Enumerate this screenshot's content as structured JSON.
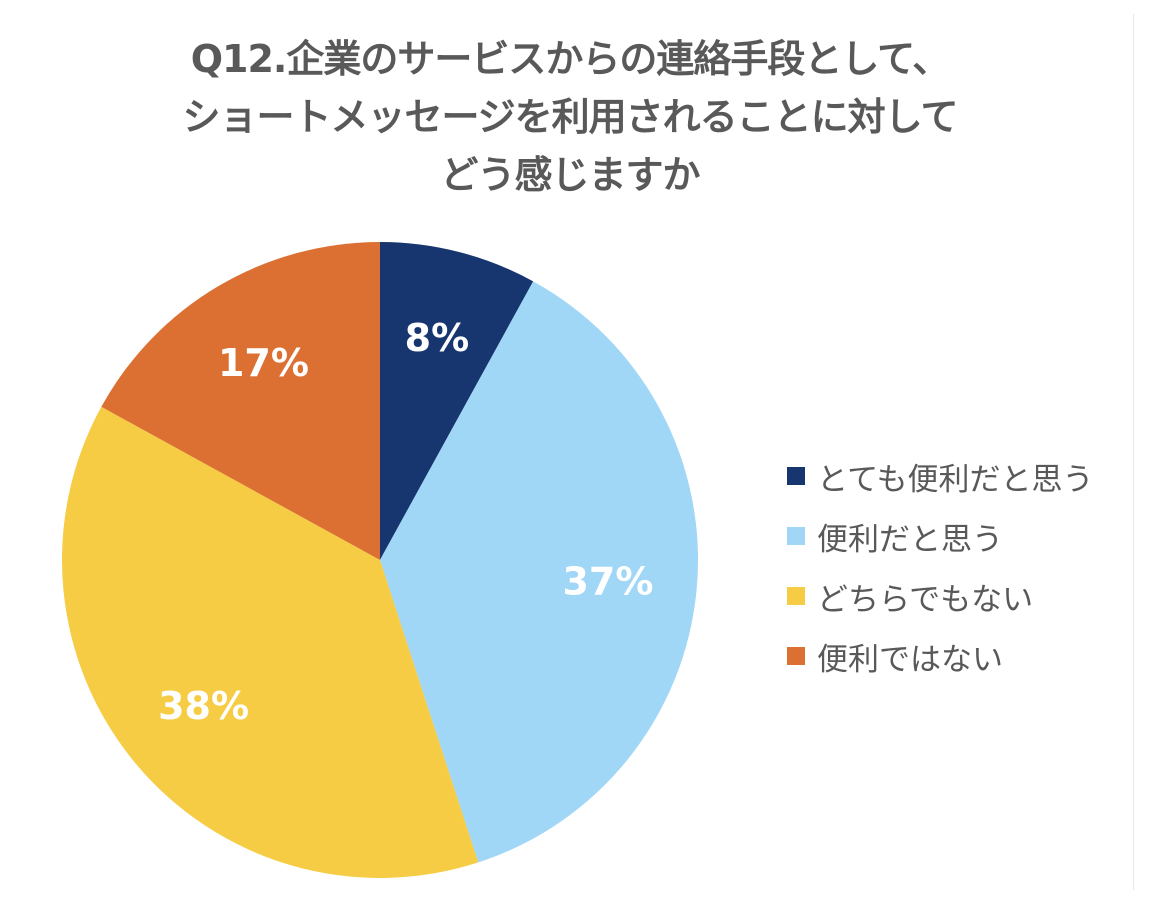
{
  "title": {
    "line1": "Q12.企業のサービスからの連絡手段として、",
    "line2": "ショートメッセージを利用されることに対して",
    "line3": "どう感じますか"
  },
  "chart_data": {
    "type": "pie",
    "title": "Q12.企業のサービスからの連絡手段として、ショートメッセージを利用されることに対してどう感じますか",
    "categories": [
      "とても便利だと思う",
      "便利だと思う",
      "どちらでもない",
      "便利ではない"
    ],
    "values": [
      8,
      37,
      38,
      17
    ],
    "labels": [
      "8%",
      "37%",
      "38%",
      "17%"
    ],
    "colors": [
      "#17366f",
      "#a0d6f6",
      "#f6cc45",
      "#dc7033"
    ],
    "start": "12 o'clock",
    "direction": "clockwise",
    "legend_position": "right"
  },
  "legend": {
    "items": [
      {
        "label": "とても便利だと思う",
        "color": "#17366f"
      },
      {
        "label": "便利だと思う",
        "color": "#a0d6f6"
      },
      {
        "label": "どちらでもない",
        "color": "#f6cc45"
      },
      {
        "label": "便利ではない",
        "color": "#dc7033"
      }
    ]
  }
}
